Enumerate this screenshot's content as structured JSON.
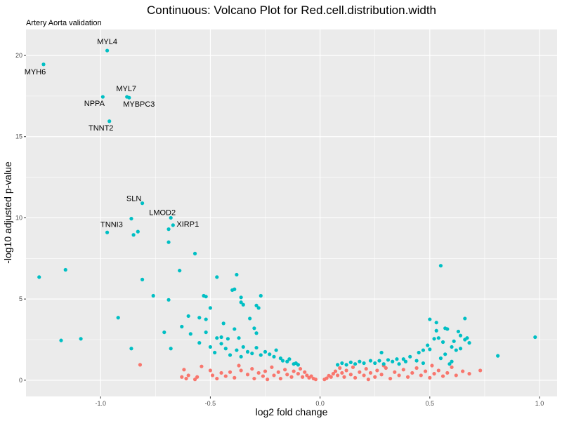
{
  "chart_data": {
    "type": "scatter",
    "title": "Continuous: Volcano Plot for Red.cell.distribution.width",
    "subtitle": "Artery Aorta validation",
    "xlabel": "log2 fold change",
    "ylabel": "-log10 adjusted p-value",
    "xlim": [
      -1.34,
      1.08
    ],
    "ylim": [
      -1.0,
      21.6
    ],
    "x_ticks": [
      -1.0,
      -0.5,
      0.0,
      0.5,
      1.0
    ],
    "x_tick_labels": [
      "-1.0",
      "-0.5",
      "0.0",
      "0.5",
      "1.0"
    ],
    "y_ticks": [
      0,
      5,
      10,
      15,
      20
    ],
    "y_tick_labels": [
      "0",
      "5",
      "10",
      "15",
      "20"
    ],
    "grid": true,
    "legend": "none",
    "colors": {
      "significant": "#00BFC4",
      "not_significant": "#F8766D",
      "panel": "#EBEBEB",
      "grid": "#FFFFFF"
    },
    "series": [
      {
        "name": "significant",
        "color": "#00BFC4",
        "points": [
          [
            -1.26,
            19.45
          ],
          [
            -0.97,
            20.3
          ],
          [
            -0.99,
            17.45
          ],
          [
            -0.88,
            17.45
          ],
          [
            -0.87,
            17.4
          ],
          [
            -0.96,
            15.95
          ],
          [
            -0.81,
            10.9
          ],
          [
            -0.68,
            10.0
          ],
          [
            -0.67,
            9.55
          ],
          [
            -0.86,
            9.95
          ],
          [
            -0.97,
            9.1
          ],
          [
            -0.85,
            8.95
          ],
          [
            -0.83,
            9.15
          ],
          [
            -0.69,
            9.3
          ],
          [
            -0.69,
            8.5
          ],
          [
            -0.57,
            7.8
          ],
          [
            -1.16,
            6.8
          ],
          [
            -1.28,
            6.35
          ],
          [
            -0.64,
            6.75
          ],
          [
            -0.81,
            6.2
          ],
          [
            -0.47,
            6.35
          ],
          [
            -0.38,
            6.5
          ],
          [
            -0.39,
            5.6
          ],
          [
            -0.4,
            5.55
          ],
          [
            -0.53,
            5.2
          ],
          [
            -0.52,
            5.15
          ],
          [
            -0.76,
            5.2
          ],
          [
            -0.36,
            5.1
          ],
          [
            -0.36,
            4.8
          ],
          [
            -0.35,
            4.65
          ],
          [
            -0.27,
            5.2
          ],
          [
            -0.69,
            4.95
          ],
          [
            -0.29,
            4.6
          ],
          [
            -0.28,
            4.45
          ],
          [
            -0.5,
            4.45
          ],
          [
            -0.6,
            3.95
          ],
          [
            -0.55,
            3.85
          ],
          [
            -0.52,
            3.75
          ],
          [
            -0.44,
            3.5
          ],
          [
            -0.32,
            3.8
          ],
          [
            -0.92,
            3.85
          ],
          [
            -0.63,
            3.3
          ],
          [
            -0.39,
            3.15
          ],
          [
            -0.3,
            3.2
          ],
          [
            -0.29,
            2.9
          ],
          [
            -0.71,
            2.95
          ],
          [
            -0.59,
            2.85
          ],
          [
            -0.52,
            2.95
          ],
          [
            -0.47,
            2.6
          ],
          [
            -0.45,
            2.65
          ],
          [
            -0.42,
            2.55
          ],
          [
            -0.37,
            2.6
          ],
          [
            -1.18,
            2.45
          ],
          [
            -1.09,
            2.55
          ],
          [
            -0.68,
            1.95
          ],
          [
            -0.86,
            1.95
          ],
          [
            -0.55,
            2.3
          ],
          [
            -0.5,
            2.05
          ],
          [
            -0.45,
            2.25
          ],
          [
            -0.43,
            1.95
          ],
          [
            -0.38,
            1.85
          ],
          [
            -0.35,
            2.05
          ],
          [
            -0.33,
            1.75
          ],
          [
            -0.31,
            1.65
          ],
          [
            -0.29,
            2.0
          ],
          [
            -0.27,
            1.55
          ],
          [
            -0.25,
            1.75
          ],
          [
            -0.23,
            1.6
          ],
          [
            -0.21,
            1.45
          ],
          [
            -0.2,
            1.85
          ],
          [
            -0.18,
            1.35
          ],
          [
            -0.17,
            1.2
          ],
          [
            -0.15,
            1.15
          ],
          [
            -0.14,
            1.3
          ],
          [
            -0.12,
            1.0
          ],
          [
            -0.11,
            1.05
          ],
          [
            -0.1,
            0.95
          ],
          [
            -0.41,
            1.55
          ],
          [
            -0.48,
            1.7
          ],
          [
            -0.36,
            1.45
          ],
          [
            0.55,
            7.05
          ],
          [
            0.98,
            2.65
          ],
          [
            0.81,
            1.5
          ],
          [
            0.57,
            3.2
          ],
          [
            0.58,
            3.15
          ],
          [
            0.63,
            3.0
          ],
          [
            0.64,
            2.75
          ],
          [
            0.66,
            2.5
          ],
          [
            0.67,
            2.6
          ],
          [
            0.66,
            3.8
          ],
          [
            0.52,
            2.55
          ],
          [
            0.54,
            2.6
          ],
          [
            0.56,
            2.35
          ],
          [
            0.6,
            2.05
          ],
          [
            0.61,
            2.4
          ],
          [
            0.62,
            1.85
          ],
          [
            0.5,
            1.9
          ],
          [
            0.49,
            2.15
          ],
          [
            0.47,
            1.85
          ],
          [
            0.45,
            1.7
          ],
          [
            0.5,
            3.75
          ],
          [
            0.53,
            3.55
          ],
          [
            0.53,
            3.05
          ],
          [
            0.6,
            1.15
          ],
          [
            0.57,
            1.6
          ],
          [
            0.55,
            1.35
          ],
          [
            0.41,
            1.45
          ],
          [
            0.39,
            1.15
          ],
          [
            0.38,
            1.3
          ],
          [
            0.36,
            1.0
          ],
          [
            0.33,
            1.15
          ],
          [
            0.31,
            1.25
          ],
          [
            0.29,
            1.0
          ],
          [
            0.27,
            1.2
          ],
          [
            0.25,
            1.05
          ],
          [
            0.23,
            1.2
          ],
          [
            0.2,
            1.05
          ],
          [
            0.18,
            1.15
          ],
          [
            0.16,
            1.0
          ],
          [
            0.14,
            1.1
          ],
          [
            0.12,
            0.95
          ],
          [
            0.1,
            1.05
          ],
          [
            0.08,
            0.95
          ],
          [
            0.28,
            1.7
          ],
          [
            0.44,
            1.2
          ],
          [
            0.64,
            1.95
          ],
          [
            0.59,
            1.0
          ],
          [
            0.68,
            2.3
          ],
          [
            0.47,
            1.05
          ],
          [
            0.35,
            1.3
          ]
        ]
      },
      {
        "name": "not significant",
        "color": "#F8766D",
        "points": [
          [
            -0.82,
            0.95
          ],
          [
            -0.62,
            0.65
          ],
          [
            -0.61,
            0.1
          ],
          [
            -0.6,
            0.3
          ],
          [
            -0.63,
            0.2
          ],
          [
            -0.56,
            0.2
          ],
          [
            -0.57,
            0.05
          ],
          [
            -0.5,
            0.6
          ],
          [
            -0.49,
            0.3
          ],
          [
            -0.45,
            0.45
          ],
          [
            -0.47,
            0.1
          ],
          [
            -0.41,
            0.5
          ],
          [
            -0.43,
            0.25
          ],
          [
            -0.39,
            0.15
          ],
          [
            -0.36,
            0.6
          ],
          [
            -0.33,
            0.35
          ],
          [
            -0.31,
            0.7
          ],
          [
            -0.3,
            0.1
          ],
          [
            -0.28,
            0.45
          ],
          [
            -0.26,
            0.25
          ],
          [
            -0.25,
            0.55
          ],
          [
            -0.22,
            0.8
          ],
          [
            -0.21,
            0.3
          ],
          [
            -0.19,
            0.5
          ],
          [
            -0.18,
            0.1
          ],
          [
            -0.16,
            0.65
          ],
          [
            -0.15,
            0.35
          ],
          [
            -0.13,
            0.2
          ],
          [
            -0.12,
            0.55
          ],
          [
            -0.1,
            0.4
          ],
          [
            -0.09,
            0.7
          ],
          [
            -0.08,
            0.2
          ],
          [
            -0.07,
            0.5
          ],
          [
            -0.06,
            0.3
          ],
          [
            -0.05,
            0.15
          ],
          [
            -0.04,
            0.25
          ],
          [
            -0.03,
            0.1
          ],
          [
            -0.02,
            0.05
          ],
          [
            0.02,
            0.05
          ],
          [
            0.03,
            0.12
          ],
          [
            0.04,
            0.28
          ],
          [
            0.05,
            0.2
          ],
          [
            0.06,
            0.4
          ],
          [
            0.07,
            0.55
          ],
          [
            0.08,
            0.3
          ],
          [
            0.09,
            0.75
          ],
          [
            0.1,
            0.45
          ],
          [
            0.11,
            0.2
          ],
          [
            0.12,
            0.6
          ],
          [
            0.14,
            0.35
          ],
          [
            0.15,
            0.8
          ],
          [
            0.16,
            0.15
          ],
          [
            0.18,
            0.5
          ],
          [
            0.2,
            0.3
          ],
          [
            0.21,
            0.7
          ],
          [
            0.23,
            0.45
          ],
          [
            0.25,
            0.2
          ],
          [
            0.26,
            0.6
          ],
          [
            0.28,
            0.35
          ],
          [
            0.3,
            0.75
          ],
          [
            0.32,
            0.1
          ],
          [
            0.34,
            0.5
          ],
          [
            0.36,
            0.3
          ],
          [
            0.38,
            0.65
          ],
          [
            0.4,
            0.2
          ],
          [
            0.42,
            0.45
          ],
          [
            0.44,
            0.75
          ],
          [
            0.46,
            0.3
          ],
          [
            0.48,
            0.55
          ],
          [
            0.5,
            0.15
          ],
          [
            0.52,
            0.4
          ],
          [
            0.54,
            0.6
          ],
          [
            0.56,
            0.25
          ],
          [
            0.58,
            0.45
          ],
          [
            0.6,
            0.8
          ],
          [
            0.62,
            0.3
          ],
          [
            0.65,
            0.55
          ],
          [
            0.68,
            0.4
          ],
          [
            0.73,
            0.6
          ],
          [
            0.51,
            0.9
          ],
          [
            -0.54,
            0.85
          ],
          [
            -0.37,
            0.9
          ],
          [
            0.29,
            0.9
          ],
          [
            -0.24,
            0.05
          ],
          [
            0.22,
            0.05
          ]
        ]
      }
    ],
    "annotations": [
      {
        "text": "MYL4",
        "x": -0.97,
        "y": 20.3
      },
      {
        "text": "MYH6",
        "x": -1.26,
        "y": 19.45
      },
      {
        "text": "MYL7",
        "x": -0.88,
        "y": 17.45
      },
      {
        "text": "NPPA",
        "x": -0.99,
        "y": 17.45
      },
      {
        "text": "MYBPC3",
        "x": -0.87,
        "y": 17.4
      },
      {
        "text": "TNNT2",
        "x": -0.96,
        "y": 15.95
      },
      {
        "text": "SLN",
        "x": -0.81,
        "y": 10.9
      },
      {
        "text": "LMOD2",
        "x": -0.68,
        "y": 10.0
      },
      {
        "text": "XIRP1",
        "x": -0.67,
        "y": 9.55
      },
      {
        "text": "TNNI3",
        "x": -0.86,
        "y": 9.95
      }
    ]
  }
}
